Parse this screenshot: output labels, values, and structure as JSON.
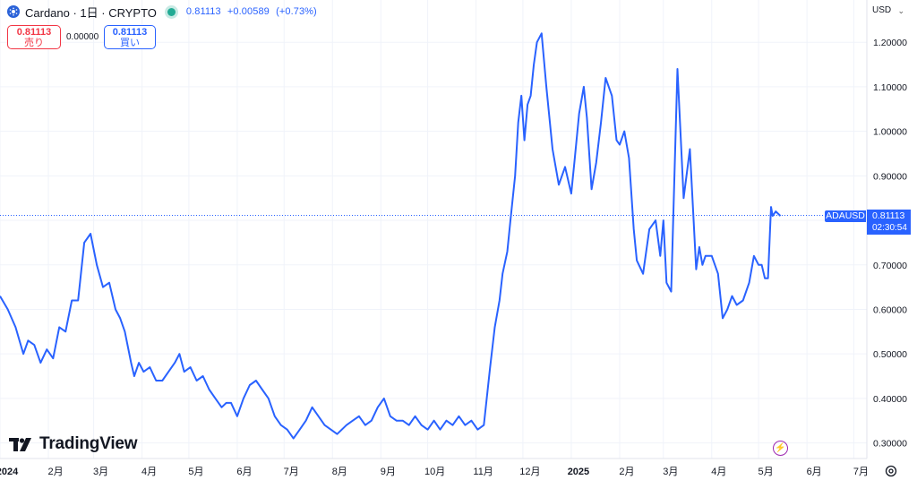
{
  "header": {
    "symbol_title": "Cardano · 1日 · CRYPTO",
    "last_price": "0.81113",
    "change": "+0.00589",
    "change_pct": "(+0.73%)",
    "sell_price": "0.81113",
    "sell_label": "売り",
    "spread": "0.00000",
    "buy_price": "0.81113",
    "buy_label": "買い"
  },
  "currency_button": "USD",
  "logo_text": "TradingView",
  "price_tag": {
    "symbol": "ADAUSD",
    "price": "0.81113",
    "countdown": "02:30:54"
  },
  "colors": {
    "line": "#2962ff",
    "sell": "#f23645",
    "buy": "#2962ff",
    "live": "#22ab94",
    "grid": "#f0f3fa"
  },
  "chart_data": {
    "type": "line",
    "title": "",
    "xlabel": "",
    "ylabel": "",
    "ylim": [
      0.265,
      1.295
    ],
    "y_ticks": [
      "1.20000",
      "1.10000",
      "1.00000",
      "0.90000",
      "0.80000",
      "0.70000",
      "0.60000",
      "0.50000",
      "0.40000",
      "0.30000"
    ],
    "x_ticks": [
      "2024",
      "2月",
      "3月",
      "4月",
      "5月",
      "6月",
      "7月",
      "8月",
      "9月",
      "10月",
      "11月",
      "12月",
      "2025",
      "2月",
      "3月",
      "4月",
      "5月",
      "6月",
      "7月"
    ],
    "x_tick_values": [
      0,
      31,
      60,
      91,
      121,
      152,
      182,
      213,
      244,
      274,
      305,
      335,
      366,
      397,
      425,
      456,
      486,
      517,
      547
    ],
    "x_range": [
      0,
      560
    ],
    "last_value": 0.81113,
    "series": [
      {
        "x": [
          0,
          5,
          10,
          15,
          18,
          22,
          26,
          30,
          34,
          38,
          42,
          46,
          50,
          54,
          58,
          62,
          66,
          70,
          74,
          77,
          80,
          84,
          86,
          89,
          92,
          96,
          100,
          104,
          108,
          112,
          115,
          118,
          122,
          126,
          130,
          134,
          138,
          142,
          145,
          148,
          152,
          156,
          160,
          164,
          168,
          172,
          176,
          180,
          184,
          188,
          192,
          196,
          200,
          204,
          208,
          212,
          216,
          219,
          222,
          226,
          230,
          234,
          238,
          242,
          246,
          250,
          254,
          258,
          262,
          266,
          270,
          274,
          278,
          282,
          286,
          290,
          294,
          298,
          302,
          306,
          310,
          314,
          317,
          320,
          322,
          325,
          327,
          330,
          332,
          334,
          336,
          338,
          340,
          342,
          344,
          347,
          350,
          354,
          358,
          362,
          366,
          368,
          371,
          374,
          376,
          379,
          382,
          385,
          388,
          392,
          395,
          397,
          400,
          403,
          406,
          408,
          412,
          416,
          420,
          423,
          425,
          427,
          430,
          434,
          438,
          442,
          446,
          448,
          450,
          452,
          456,
          460,
          463,
          466,
          469,
          472,
          476,
          480,
          483,
          486,
          488,
          490,
          492,
          493,
          494,
          495,
          497,
          500
        ],
        "y": [
          0.63,
          0.6,
          0.56,
          0.5,
          0.53,
          0.52,
          0.48,
          0.51,
          0.49,
          0.56,
          0.55,
          0.62,
          0.62,
          0.75,
          0.77,
          0.7,
          0.65,
          0.66,
          0.6,
          0.58,
          0.55,
          0.48,
          0.45,
          0.48,
          0.46,
          0.47,
          0.44,
          0.44,
          0.46,
          0.48,
          0.5,
          0.46,
          0.47,
          0.44,
          0.45,
          0.42,
          0.4,
          0.38,
          0.39,
          0.39,
          0.36,
          0.4,
          0.43,
          0.44,
          0.42,
          0.4,
          0.36,
          0.34,
          0.33,
          0.31,
          0.33,
          0.35,
          0.38,
          0.36,
          0.34,
          0.33,
          0.32,
          0.33,
          0.34,
          0.35,
          0.36,
          0.34,
          0.35,
          0.38,
          0.4,
          0.36,
          0.35,
          0.35,
          0.34,
          0.36,
          0.34,
          0.33,
          0.35,
          0.33,
          0.35,
          0.34,
          0.36,
          0.34,
          0.35,
          0.33,
          0.34,
          0.47,
          0.56,
          0.62,
          0.68,
          0.73,
          0.8,
          0.9,
          1.02,
          1.08,
          0.98,
          1.06,
          1.08,
          1.15,
          1.2,
          1.22,
          1.1,
          0.96,
          0.88,
          0.92,
          0.86,
          0.93,
          1.04,
          1.1,
          1.03,
          0.87,
          0.93,
          1.02,
          1.12,
          1.08,
          0.98,
          0.97,
          1.0,
          0.94,
          0.78,
          0.71,
          0.68,
          0.78,
          0.8,
          0.72,
          0.8,
          0.66,
          0.64,
          1.14,
          0.85,
          0.96,
          0.69,
          0.74,
          0.7,
          0.72,
          0.72,
          0.68,
          0.58,
          0.6,
          0.63,
          0.61,
          0.62,
          0.66,
          0.72,
          0.7,
          0.7,
          0.67,
          0.67,
          0.75,
          0.83,
          0.81,
          0.82,
          0.81
        ]
      }
    ]
  }
}
